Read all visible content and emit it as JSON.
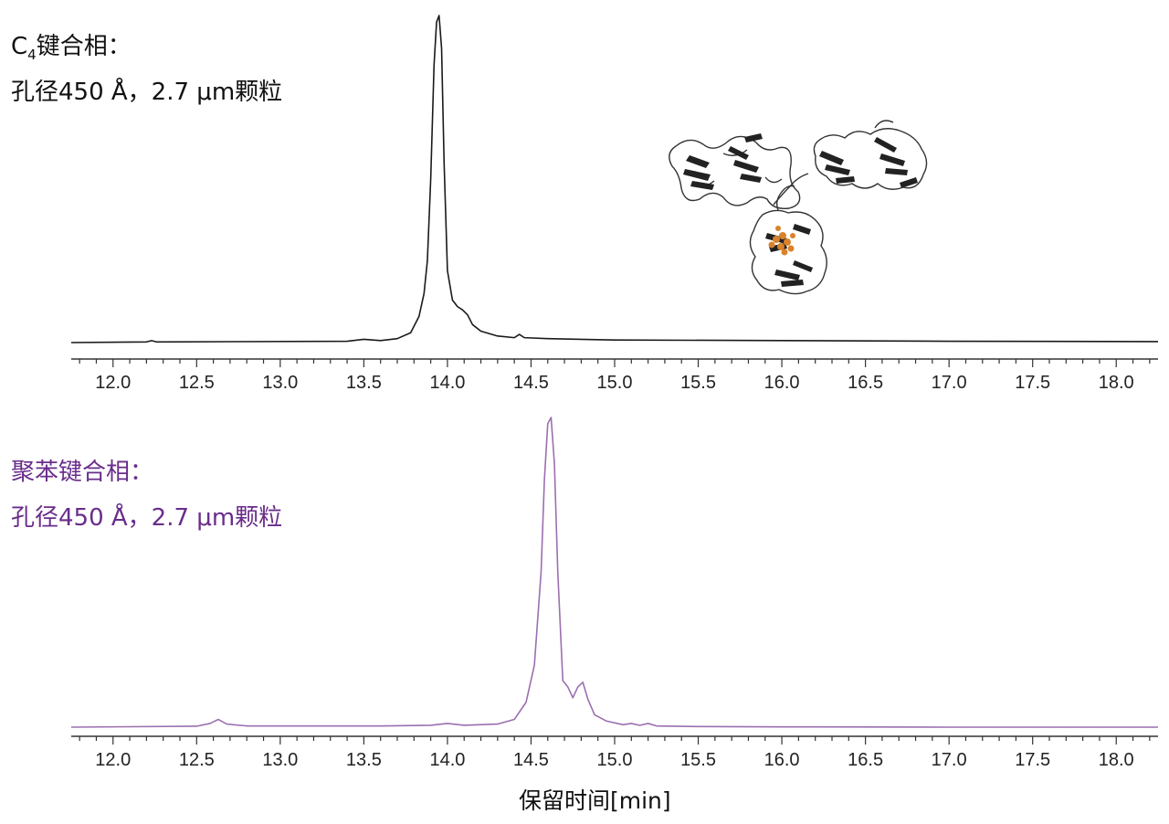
{
  "chart_data": [
    {
      "type": "line",
      "label_line1_prefix": "C",
      "label_line1_sub": "4",
      "label_line1_suffix": "键合相：",
      "label_line2": "孔径450 Å，2.7 μm颗粒",
      "label_color": "#111111",
      "line_color": "#1a1a1a",
      "xlim": [
        11.75,
        18.25
      ],
      "x_ticks": [
        "12.0",
        "12.5",
        "13.0",
        "13.5",
        "14.0",
        "14.5",
        "15.0",
        "15.5",
        "16.0",
        "16.5",
        "17.0",
        "17.5",
        "18.0"
      ],
      "series": [
        {
          "x": [
            11.75,
            12.2,
            12.23,
            12.26,
            13.4,
            13.5,
            13.6,
            13.7,
            13.78,
            13.83,
            13.86,
            13.88,
            13.9,
            13.92,
            13.935,
            13.95,
            13.965,
            13.98,
            14.0,
            14.03,
            14.06,
            14.09,
            14.12,
            14.15,
            14.2,
            14.3,
            14.4,
            14.43,
            14.46,
            14.6,
            15.0,
            16.0,
            17.0,
            18.25
          ],
          "y": [
            0.0,
            0.002,
            0.006,
            0.002,
            0.004,
            0.01,
            0.006,
            0.012,
            0.03,
            0.08,
            0.15,
            0.25,
            0.5,
            0.85,
            0.98,
            1.0,
            0.9,
            0.55,
            0.22,
            0.13,
            0.11,
            0.1,
            0.085,
            0.055,
            0.035,
            0.02,
            0.015,
            0.025,
            0.015,
            0.012,
            0.008,
            0.006,
            0.004,
            0.003
          ]
        }
      ]
    },
    {
      "type": "line",
      "label_line1": "聚苯键合相：",
      "label_line2": "孔径450 Å，2.7 μm颗粒",
      "label_color": "#6a2d8a",
      "line_color": "#9b6fb0",
      "xlim": [
        11.75,
        18.25
      ],
      "x_ticks": [
        "12.0",
        "12.5",
        "13.0",
        "13.5",
        "14.0",
        "14.5",
        "15.0",
        "15.5",
        "16.0",
        "16.5",
        "17.0",
        "17.5",
        "18.0"
      ],
      "xlabel": "保留时间[min]",
      "series": [
        {
          "x": [
            11.75,
            12.5,
            12.58,
            12.63,
            12.68,
            12.8,
            13.6,
            13.9,
            14.0,
            14.1,
            14.3,
            14.4,
            14.47,
            14.52,
            14.56,
            14.58,
            14.6,
            14.62,
            14.64,
            14.66,
            14.69,
            14.72,
            14.75,
            14.78,
            14.81,
            14.84,
            14.88,
            14.95,
            15.05,
            15.1,
            15.15,
            15.2,
            15.25,
            15.5,
            16.0,
            17.0,
            18.25
          ],
          "y": [
            0.0,
            0.003,
            0.012,
            0.025,
            0.01,
            0.004,
            0.004,
            0.006,
            0.012,
            0.006,
            0.01,
            0.025,
            0.08,
            0.2,
            0.5,
            0.8,
            0.98,
            1.0,
            0.85,
            0.5,
            0.15,
            0.13,
            0.095,
            0.13,
            0.145,
            0.09,
            0.04,
            0.02,
            0.008,
            0.012,
            0.006,
            0.012,
            0.004,
            0.002,
            0.001,
            0.0,
            0.0
          ]
        }
      ]
    }
  ]
}
